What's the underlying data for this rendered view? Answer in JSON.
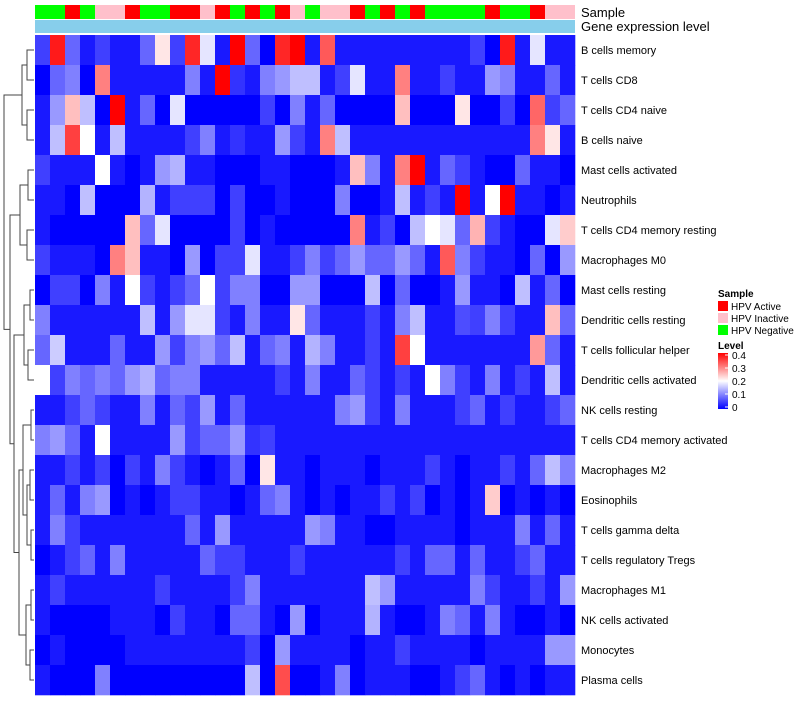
{
  "chart_data": {
    "type": "heatmap",
    "title": "",
    "annotation_rows": [
      "Sample",
      "Gene expression level"
    ],
    "sample_groups": [
      {
        "name": "HPV Active",
        "color": "#ff0000"
      },
      {
        "name": "HPV Inactive",
        "color": "#ffc0cb"
      },
      {
        "name": "HPV Negative",
        "color": "#00ff00"
      }
    ],
    "sample_annotation": [
      2,
      2,
      0,
      2,
      1,
      1,
      0,
      2,
      2,
      0,
      0,
      1,
      0,
      2,
      0,
      2,
      0,
      1,
      2,
      1,
      1,
      0,
      2,
      0,
      2,
      0,
      2,
      2,
      2,
      2,
      0,
      2,
      2,
      0,
      1,
      1
    ],
    "expression_level_color": "#87ceeb",
    "legend": {
      "sample_title": "Sample",
      "level_title": "Level",
      "level_ticks": [
        "0.4",
        "0.3",
        "0.2",
        "0.1",
        "0"
      ],
      "placement": "right"
    },
    "color_scale": {
      "min": 0,
      "max": 0.4,
      "low": "#0000ff",
      "mid": "#ffffff",
      "high": "#ff0000"
    },
    "rows": [
      "B cells memory",
      "T cells CD8",
      "T cells CD4 naive",
      "B cells naive",
      "Mast cells activated",
      "Neutrophils",
      "T cells CD4 memory resting",
      "Macrophages M0",
      "Mast cells resting",
      "Dendritic cells resting",
      "T cells follicular helper",
      "Dendritic cells activated",
      "NK cells resting",
      "T cells CD4 memory activated",
      "Macrophages M2",
      "Eosinophils",
      "T cells gamma delta",
      "T cells regulatory  Tregs",
      "Macrophages M1",
      "NK cells activated",
      "Monocytes",
      "Plasma cells"
    ],
    "values": [
      [
        0.05,
        0.38,
        0.08,
        0.02,
        0.05,
        0.02,
        0.02,
        0.08,
        0.22,
        0.05,
        0.37,
        0.18,
        0.02,
        0.4,
        0.08,
        0.0,
        0.37,
        0.4,
        0.02,
        0.33,
        0.02,
        0.02,
        0.02,
        0.02,
        0.02,
        0.02,
        0.02,
        0.02,
        0.02,
        0.05,
        0.0,
        0.38,
        0.02,
        0.18,
        0.02,
        0.02
      ],
      [
        0.0,
        0.08,
        0.1,
        0.0,
        0.3,
        0.02,
        0.02,
        0.02,
        0.02,
        0.02,
        0.1,
        0.02,
        0.4,
        0.04,
        0.02,
        0.1,
        0.12,
        0.15,
        0.15,
        0.02,
        0.05,
        0.18,
        0.02,
        0.02,
        0.3,
        0.02,
        0.02,
        0.05,
        0.02,
        0.02,
        0.12,
        0.1,
        0.02,
        0.02,
        0.08,
        0.02
      ],
      [
        0.02,
        0.12,
        0.25,
        0.15,
        0.0,
        0.4,
        0.02,
        0.08,
        0.0,
        0.18,
        0.0,
        0.0,
        0.0,
        0.0,
        0.0,
        0.05,
        0.0,
        0.1,
        0.02,
        0.08,
        0.0,
        0.0,
        0.0,
        0.0,
        0.25,
        0.0,
        0.0,
        0.0,
        0.22,
        0.0,
        0.0,
        0.05,
        0.0,
        0.32,
        0.05,
        0.08
      ],
      [
        0.02,
        0.15,
        0.35,
        0.2,
        0.02,
        0.15,
        0.02,
        0.02,
        0.02,
        0.02,
        0.05,
        0.1,
        0.02,
        0.04,
        0.02,
        0.02,
        0.12,
        0.05,
        0.02,
        0.3,
        0.15,
        0.02,
        0.02,
        0.02,
        0.02,
        0.02,
        0.02,
        0.02,
        0.02,
        0.02,
        0.02,
        0.02,
        0.02,
        0.3,
        0.22,
        0.02
      ],
      [
        0.05,
        0.02,
        0.02,
        0.02,
        0.2,
        0.02,
        0.0,
        0.02,
        0.12,
        0.14,
        0.02,
        0.02,
        0.0,
        0.0,
        0.0,
        0.02,
        0.02,
        0.0,
        0.0,
        0.0,
        0.02,
        0.25,
        0.1,
        0.02,
        0.3,
        0.4,
        0.02,
        0.08,
        0.05,
        0.02,
        0.0,
        0.0,
        0.08,
        0.02,
        0.02,
        0.0
      ],
      [
        0.02,
        0.02,
        0.0,
        0.15,
        0.0,
        0.0,
        0.0,
        0.14,
        0.02,
        0.05,
        0.05,
        0.05,
        0.0,
        0.05,
        0.0,
        0.0,
        0.02,
        0.0,
        0.0,
        0.0,
        0.1,
        0.0,
        0.0,
        0.02,
        0.15,
        0.02,
        0.05,
        0.02,
        0.4,
        0.02,
        0.2,
        0.4,
        0.02,
        0.02,
        0.0,
        0.02
      ],
      [
        0.02,
        0.0,
        0.0,
        0.0,
        0.0,
        0.0,
        0.25,
        0.08,
        0.18,
        0.0,
        0.0,
        0.0,
        0.0,
        0.05,
        0.0,
        0.02,
        0.0,
        0.0,
        0.0,
        0.0,
        0.0,
        0.3,
        0.02,
        0.05,
        0.0,
        0.15,
        0.2,
        0.18,
        0.08,
        0.26,
        0.05,
        0.02,
        0.0,
        0.0,
        0.18,
        0.24
      ],
      [
        0.05,
        0.02,
        0.02,
        0.02,
        0.0,
        0.3,
        0.25,
        0.02,
        0.02,
        0.0,
        0.12,
        0.0,
        0.05,
        0.05,
        0.18,
        0.02,
        0.02,
        0.05,
        0.1,
        0.05,
        0.08,
        0.12,
        0.08,
        0.08,
        0.12,
        0.08,
        0.02,
        0.33,
        0.1,
        0.05,
        0.02,
        0.02,
        0.0,
        0.08,
        0.0,
        0.12
      ],
      [
        0.0,
        0.05,
        0.05,
        0.0,
        0.1,
        0.02,
        0.2,
        0.05,
        0.02,
        0.05,
        0.08,
        0.2,
        0.05,
        0.1,
        0.1,
        0.0,
        0.0,
        0.12,
        0.12,
        0.0,
        0.0,
        0.0,
        0.15,
        0.0,
        0.08,
        0.0,
        0.0,
        0.02,
        0.12,
        0.02,
        0.02,
        0.0,
        0.15,
        0.02,
        0.08,
        0.0
      ],
      [
        0.1,
        0.02,
        0.02,
        0.02,
        0.02,
        0.02,
        0.02,
        0.15,
        0.02,
        0.12,
        0.18,
        0.18,
        0.05,
        0.02,
        0.1,
        0.02,
        0.02,
        0.22,
        0.08,
        0.02,
        0.02,
        0.02,
        0.05,
        0.02,
        0.1,
        0.15,
        0.02,
        0.02,
        0.06,
        0.05,
        0.1,
        0.05,
        0.02,
        0.02,
        0.25,
        0.08
      ],
      [
        0.08,
        0.16,
        0.02,
        0.02,
        0.02,
        0.08,
        0.02,
        0.02,
        0.12,
        0.05,
        0.1,
        0.12,
        0.08,
        0.15,
        0.02,
        0.08,
        0.1,
        0.02,
        0.14,
        0.1,
        0.02,
        0.02,
        0.05,
        0.02,
        0.35,
        0.2,
        0.02,
        0.02,
        0.02,
        0.02,
        0.02,
        0.02,
        0.02,
        0.28,
        0.08,
        0.02
      ],
      [
        0.2,
        0.05,
        0.1,
        0.08,
        0.1,
        0.08,
        0.12,
        0.14,
        0.08,
        0.1,
        0.1,
        0.02,
        0.02,
        0.02,
        0.02,
        0.02,
        0.05,
        0.02,
        0.1,
        0.02,
        0.02,
        0.08,
        0.05,
        0.02,
        0.05,
        0.02,
        0.2,
        0.1,
        0.05,
        0.02,
        0.1,
        0.02,
        0.05,
        0.02,
        0.15,
        0.02
      ],
      [
        0.02,
        0.02,
        0.05,
        0.08,
        0.05,
        0.02,
        0.02,
        0.1,
        0.02,
        0.08,
        0.05,
        0.12,
        0.02,
        0.08,
        0.02,
        0.02,
        0.02,
        0.02,
        0.02,
        0.02,
        0.1,
        0.12,
        0.05,
        0.02,
        0.1,
        0.02,
        0.02,
        0.02,
        0.05,
        0.08,
        0.02,
        0.05,
        0.02,
        0.02,
        0.05,
        0.08
      ],
      [
        0.1,
        0.12,
        0.08,
        0.02,
        0.2,
        0.02,
        0.02,
        0.02,
        0.02,
        0.12,
        0.05,
        0.08,
        0.08,
        0.12,
        0.04,
        0.05,
        0.02,
        0.02,
        0.02,
        0.02,
        0.02,
        0.02,
        0.02,
        0.02,
        0.02,
        0.02,
        0.02,
        0.02,
        0.02,
        0.02,
        0.02,
        0.02,
        0.02,
        0.02,
        0.02,
        0.02
      ],
      [
        0.02,
        0.02,
        0.05,
        0.02,
        0.05,
        0.0,
        0.05,
        0.02,
        0.1,
        0.05,
        0.02,
        0.0,
        0.02,
        0.08,
        0.0,
        0.22,
        0.02,
        0.02,
        0.0,
        0.02,
        0.02,
        0.02,
        0.0,
        0.02,
        0.02,
        0.02,
        0.05,
        0.02,
        0.0,
        0.02,
        0.02,
        0.05,
        0.02,
        0.08,
        0.15,
        0.1
      ],
      [
        0.02,
        0.08,
        0.02,
        0.1,
        0.12,
        0.0,
        0.02,
        0.0,
        0.02,
        0.05,
        0.05,
        0.02,
        0.02,
        0.0,
        0.02,
        0.08,
        0.1,
        0.02,
        0.0,
        0.02,
        0.0,
        0.02,
        0.02,
        0.05,
        0.02,
        0.05,
        0.0,
        0.02,
        0.0,
        0.02,
        0.24,
        0.0,
        0.02,
        0.0,
        0.02,
        0.0
      ],
      [
        0.02,
        0.1,
        0.05,
        0.02,
        0.02,
        0.02,
        0.02,
        0.02,
        0.02,
        0.02,
        0.08,
        0.02,
        0.12,
        0.02,
        0.02,
        0.02,
        0.02,
        0.02,
        0.12,
        0.1,
        0.02,
        0.02,
        0.0,
        0.0,
        0.02,
        0.02,
        0.02,
        0.02,
        0.0,
        0.02,
        0.02,
        0.02,
        0.1,
        0.02,
        0.08,
        0.02
      ],
      [
        0.0,
        0.02,
        0.05,
        0.08,
        0.02,
        0.1,
        0.02,
        0.02,
        0.02,
        0.02,
        0.02,
        0.08,
        0.05,
        0.05,
        0.02,
        0.02,
        0.02,
        0.05,
        0.02,
        0.02,
        0.02,
        0.02,
        0.02,
        0.02,
        0.05,
        0.02,
        0.08,
        0.08,
        0.02,
        0.08,
        0.02,
        0.02,
        0.05,
        0.08,
        0.02,
        0.02
      ],
      [
        0.02,
        0.05,
        0.02,
        0.02,
        0.02,
        0.02,
        0.02,
        0.02,
        0.05,
        0.02,
        0.02,
        0.02,
        0.02,
        0.05,
        0.1,
        0.02,
        0.02,
        0.02,
        0.02,
        0.02,
        0.02,
        0.02,
        0.15,
        0.12,
        0.02,
        0.02,
        0.02,
        0.02,
        0.02,
        0.1,
        0.05,
        0.02,
        0.02,
        0.05,
        0.02,
        0.12
      ],
      [
        0.02,
        0.0,
        0.0,
        0.0,
        0.0,
        0.02,
        0.02,
        0.02,
        0.0,
        0.05,
        0.02,
        0.02,
        0.0,
        0.08,
        0.08,
        0.02,
        0.0,
        0.12,
        0.0,
        0.02,
        0.02,
        0.02,
        0.14,
        0.02,
        0.0,
        0.0,
        0.02,
        0.1,
        0.08,
        0.02,
        0.1,
        0.02,
        0.0,
        0.0,
        0.02,
        0.0
      ],
      [
        0.0,
        0.02,
        0.0,
        0.0,
        0.0,
        0.0,
        0.02,
        0.02,
        0.02,
        0.02,
        0.02,
        0.02,
        0.02,
        0.02,
        0.05,
        0.0,
        0.12,
        0.02,
        0.02,
        0.02,
        0.02,
        0.0,
        0.02,
        0.02,
        0.05,
        0.02,
        0.02,
        0.02,
        0.02,
        0.0,
        0.02,
        0.02,
        0.02,
        0.02,
        0.12,
        0.12
      ],
      [
        0.02,
        0.0,
        0.0,
        0.0,
        0.1,
        0.0,
        0.0,
        0.0,
        0.0,
        0.0,
        0.0,
        0.0,
        0.0,
        0.0,
        0.15,
        0.0,
        0.34,
        0.0,
        0.0,
        0.02,
        0.1,
        0.0,
        0.02,
        0.02,
        0.02,
        0.0,
        0.0,
        0.02,
        0.05,
        0.08,
        0.02,
        0.0,
        0.02,
        0.0,
        0.02,
        0.02
      ]
    ]
  }
}
